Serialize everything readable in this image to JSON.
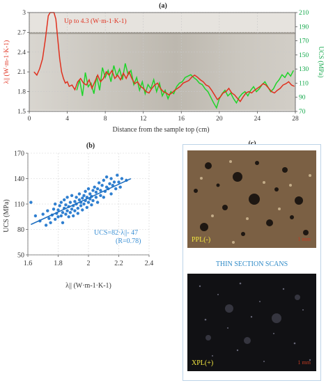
{
  "panels": {
    "a": "(a)",
    "b": "(b)",
    "c": "(c)"
  },
  "colors": {
    "lambda_line": "#e0301e",
    "ucs_line": "#1fd42a",
    "scatter_points": "#2f7fd0",
    "regression_line": "#1f6fc0",
    "axis_right": "#12a84a",
    "annotation_blue": "#3a8fd4"
  },
  "chart_data": [
    {
      "type": "line",
      "title": "(a)",
      "xlabel": "Distance from the sample top (cm)",
      "ylabel_left": "λ|| (W·m-1·K-1)",
      "ylabel_right": "UCS (MPa)",
      "xlim": [
        0,
        28
      ],
      "ylim_left": [
        1.5,
        3
      ],
      "ylim_right": [
        70,
        210
      ],
      "xticks": [
        "0",
        "4",
        "8",
        "12",
        "16",
        "20",
        "24",
        "28"
      ],
      "yticks_left": [
        "1.5",
        "1.8",
        "2.1",
        "2.4",
        "2.7",
        "3"
      ],
      "yticks_right": [
        "70",
        "90",
        "110",
        "130",
        "150",
        "170",
        "190",
        "210"
      ],
      "annotation": "Up to 4.3 (W·m-1·K-1)",
      "grid": true,
      "series": [
        {
          "name": "λ||",
          "axis": "left",
          "x": [
            0.5,
            0.8,
            1.1,
            1.4,
            1.7,
            2.0,
            2.2,
            2.4,
            2.6,
            2.8,
            3.0,
            3.2,
            3.4,
            3.6,
            3.8,
            4.0,
            4.2,
            4.5,
            4.8,
            5.1,
            5.4,
            5.7,
            6.0,
            6.3,
            6.6,
            6.9,
            7.2,
            7.5,
            7.8,
            8.1,
            8.4,
            8.7,
            9.0,
            9.3,
            9.6,
            9.9,
            10.2,
            10.5,
            10.8,
            11.1,
            11.4,
            11.7,
            12.0,
            12.3,
            12.6,
            12.9,
            13.2,
            13.5,
            13.8,
            14.1,
            14.4,
            14.7,
            15.0,
            15.3,
            15.6,
            15.9,
            16.2,
            16.5,
            16.8,
            17.1,
            17.4,
            17.7,
            18.0,
            18.3,
            18.6,
            18.9,
            19.2,
            19.5,
            19.8,
            20.1,
            20.4,
            20.7,
            21.0,
            21.3,
            21.6,
            21.9,
            22.2,
            22.5,
            22.8,
            23.1,
            23.4,
            23.7,
            24.0,
            24.3,
            24.6,
            24.9,
            25.2,
            25.5,
            25.8,
            26.1,
            26.4,
            26.7,
            27.0,
            27.3,
            27.6,
            27.9
          ],
          "y": [
            2.1,
            2.05,
            2.15,
            2.3,
            2.6,
            2.95,
            3.0,
            3.0,
            3.0,
            2.9,
            2.6,
            2.3,
            2.1,
            2.0,
            1.93,
            1.95,
            1.88,
            1.9,
            1.83,
            1.95,
            2.0,
            1.93,
            1.9,
            1.98,
            1.85,
            1.95,
            2.05,
            1.95,
            2.0,
            2.1,
            2.05,
            2.12,
            2.0,
            2.05,
            1.98,
            2.08,
            2.0,
            2.1,
            2.0,
            1.92,
            1.95,
            1.88,
            1.85,
            1.8,
            1.78,
            1.85,
            1.9,
            1.93,
            1.85,
            1.8,
            1.78,
            1.75,
            1.78,
            1.82,
            1.85,
            1.88,
            1.93,
            1.95,
            1.97,
            2.02,
            2.05,
            2.02,
            1.98,
            1.95,
            1.9,
            1.88,
            1.82,
            1.75,
            1.68,
            1.72,
            1.78,
            1.8,
            1.85,
            1.78,
            1.75,
            1.7,
            1.65,
            1.72,
            1.78,
            1.8,
            1.78,
            1.82,
            1.85,
            1.88,
            1.92,
            1.9,
            1.85,
            1.8,
            1.78,
            1.82,
            1.85,
            1.9,
            1.92,
            1.95,
            1.9,
            1.88
          ]
        },
        {
          "name": "UCS",
          "axis": "right",
          "x": [
            5.0,
            5.3,
            5.6,
            5.9,
            6.2,
            6.5,
            6.8,
            7.1,
            7.4,
            7.7,
            8.0,
            8.3,
            8.6,
            8.9,
            9.2,
            9.5,
            9.8,
            10.1,
            10.4,
            10.7,
            11.0,
            11.3,
            11.6,
            11.9,
            12.2,
            12.5,
            12.8,
            13.1,
            13.4,
            13.7,
            14.0,
            14.3,
            14.6,
            14.9,
            15.2,
            15.5,
            15.8,
            16.1,
            16.4,
            16.7,
            17.0,
            17.3,
            17.6,
            17.9,
            18.2,
            18.5,
            18.8,
            19.1,
            19.4,
            19.7,
            20.0,
            20.3,
            20.6,
            20.9,
            21.2,
            21.5,
            21.8,
            22.1,
            22.4,
            22.7,
            23.0,
            23.3,
            23.6,
            23.9,
            24.2,
            24.5,
            24.8,
            25.1,
            25.4,
            25.7,
            26.0,
            26.3,
            26.6,
            26.9,
            27.2,
            27.5,
            27.8
          ],
          "y": [
            100,
            115,
            92,
            125,
            105,
            110,
            95,
            120,
            100,
            132,
            118,
            128,
            112,
            135,
            120,
            130,
            115,
            138,
            122,
            128,
            108,
            118,
            100,
            112,
            95,
            108,
            102,
            115,
            98,
            110,
            92,
            100,
            88,
            98,
            95,
            105,
            110,
            112,
            118,
            120,
            122,
            118,
            115,
            110,
            108,
            102,
            98,
            90,
            82,
            75,
            88,
            95,
            100,
            92,
            96,
            88,
            82,
            90,
            95,
            98,
            92,
            100,
            105,
            98,
            102,
            108,
            112,
            105,
            98,
            102,
            110,
            115,
            122,
            118,
            125,
            120,
            128
          ]
        }
      ]
    },
    {
      "type": "scatter",
      "title": "(b)",
      "xlabel": "λ|| (W·m-1·K-1)",
      "ylabel": "UCS (MPa)",
      "xlim": [
        1.6,
        2.4
      ],
      "ylim": [
        50,
        170
      ],
      "xticks": [
        "1.6",
        "1.8",
        "2",
        "2.2",
        "2.4"
      ],
      "yticks": [
        "50",
        "80",
        "110",
        "140",
        "170"
      ],
      "equation": "UCS=82·λ||- 47",
      "r_value": "(R=0.78)",
      "regression": {
        "slope": 82,
        "intercept": -47,
        "x_range": [
          1.62,
          2.28
        ]
      },
      "grid": true,
      "points": [
        [
          1.62,
          112
        ],
        [
          1.65,
          96
        ],
        [
          1.68,
          90
        ],
        [
          1.7,
          98
        ],
        [
          1.72,
          85
        ],
        [
          1.73,
          102
        ],
        [
          1.74,
          93
        ],
        [
          1.75,
          88
        ],
        [
          1.76,
          97
        ],
        [
          1.77,
          104
        ],
        [
          1.78,
          92
        ],
        [
          1.78,
          110
        ],
        [
          1.79,
          99
        ],
        [
          1.8,
          95
        ],
        [
          1.8,
          103
        ],
        [
          1.81,
          108
        ],
        [
          1.82,
          96
        ],
        [
          1.82,
          112
        ],
        [
          1.83,
          100
        ],
        [
          1.83,
          88
        ],
        [
          1.84,
          105
        ],
        [
          1.84,
          115
        ],
        [
          1.85,
          98
        ],
        [
          1.85,
          109
        ],
        [
          1.86,
          102
        ],
        [
          1.86,
          118
        ],
        [
          1.87,
          95
        ],
        [
          1.87,
          107
        ],
        [
          1.88,
          112
        ],
        [
          1.88,
          100
        ],
        [
          1.89,
          104
        ],
        [
          1.89,
          120
        ],
        [
          1.9,
          108
        ],
        [
          1.9,
          96
        ],
        [
          1.91,
          113
        ],
        [
          1.91,
          102
        ],
        [
          1.92,
          110
        ],
        [
          1.92,
          118
        ],
        [
          1.93,
          105
        ],
        [
          1.93,
          99
        ],
        [
          1.94,
          115
        ],
        [
          1.94,
          122
        ],
        [
          1.95,
          108
        ],
        [
          1.95,
          112
        ],
        [
          1.96,
          117
        ],
        [
          1.96,
          103
        ],
        [
          1.97,
          120
        ],
        [
          1.97,
          110
        ],
        [
          1.98,
          114
        ],
        [
          1.98,
          125
        ],
        [
          1.99,
          106
        ],
        [
          1.99,
          118
        ],
        [
          2.0,
          112
        ],
        [
          2.0,
          128
        ],
        [
          2.01,
          116
        ],
        [
          2.01,
          122
        ],
        [
          2.02,
          109
        ],
        [
          2.02,
          119
        ],
        [
          2.03,
          126
        ],
        [
          2.03,
          114
        ],
        [
          2.04,
          130
        ],
        [
          2.05,
          118
        ],
        [
          2.05,
          124
        ],
        [
          2.06,
          112
        ],
        [
          2.06,
          128
        ],
        [
          2.07,
          135
        ],
        [
          2.08,
          120
        ],
        [
          2.08,
          126
        ],
        [
          2.09,
          132
        ],
        [
          2.1,
          118
        ],
        [
          2.1,
          138
        ],
        [
          2.11,
          125
        ],
        [
          2.12,
          130
        ],
        [
          2.12,
          142
        ],
        [
          2.13,
          128
        ],
        [
          2.14,
          134
        ],
        [
          2.15,
          122
        ],
        [
          2.15,
          140
        ],
        [
          2.16,
          132
        ],
        [
          2.17,
          136
        ],
        [
          2.18,
          128
        ],
        [
          2.19,
          144
        ],
        [
          2.2,
          136
        ],
        [
          2.21,
          130
        ],
        [
          2.22,
          140
        ],
        [
          2.25,
          138
        ]
      ]
    }
  ],
  "thin_section": {
    "title": "(c)",
    "caption": "THIN SECTION SCANS",
    "ppl_label": "PPL(-)",
    "xpl_label": "XPL(+)",
    "scale_bar": "1 mm"
  }
}
